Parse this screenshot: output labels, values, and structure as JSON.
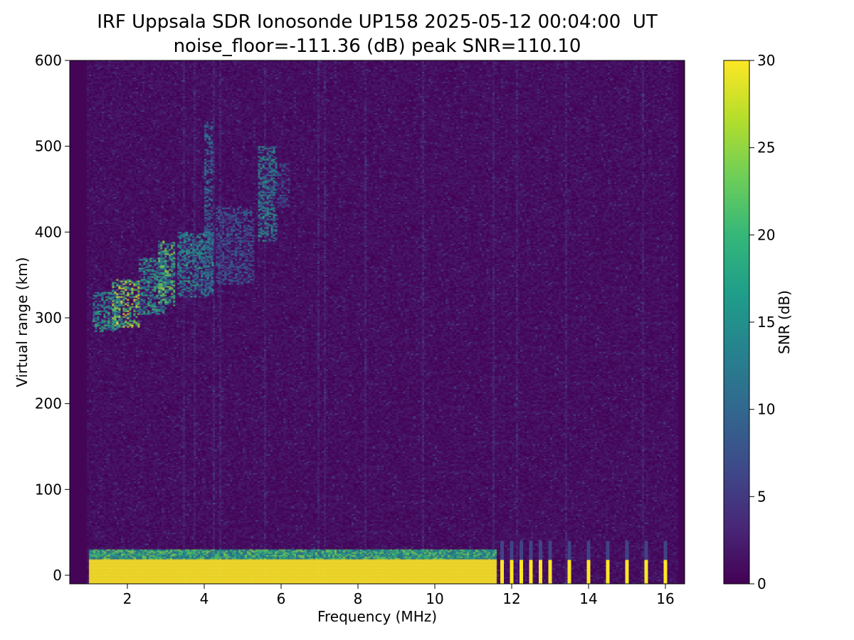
{
  "chart_data": {
    "type": "heatmap",
    "title": "IRF Uppsala SDR Ionosonde UP158 2025-05-12 00:04:00  UT",
    "subtitle": "noise_floor=-111.36 (dB) peak SNR=110.10",
    "xlabel": "Frequency (MHz)",
    "ylabel": "Virtual range (km)",
    "xlim": [
      0.5,
      16.5
    ],
    "ylim": [
      -10,
      600
    ],
    "x_ticks": [
      2,
      4,
      6,
      8,
      10,
      12,
      14,
      16
    ],
    "y_ticks": [
      0,
      100,
      200,
      300,
      400,
      500,
      600
    ],
    "colorbar": {
      "label": "SNR (dB)",
      "range": [
        0,
        30
      ],
      "ticks": [
        0,
        5,
        10,
        15,
        20,
        25,
        30
      ],
      "colormap": "viridis",
      "colors": [
        "#440154",
        "#482878",
        "#3e4a89",
        "#31688e",
        "#26828e",
        "#1f9e89",
        "#35b779",
        "#6ece58",
        "#b5de2b",
        "#fde725"
      ]
    },
    "data_frequency_range_mhz": [
      0.95,
      16.3
    ],
    "features": [
      {
        "freq_mhz": [
          1.0,
          11.6
        ],
        "range_km": [
          -10,
          30
        ],
        "snr_db": 30
      },
      {
        "freq_mhz": [
          1.1,
          1.8
        ],
        "range_km": [
          285,
          330
        ],
        "snr_db": 18
      },
      {
        "freq_mhz": [
          1.6,
          2.3
        ],
        "range_km": [
          290,
          345
        ],
        "snr_db": 26
      },
      {
        "freq_mhz": [
          2.3,
          3.0
        ],
        "range_km": [
          305,
          370
        ],
        "snr_db": 18
      },
      {
        "freq_mhz": [
          2.8,
          3.2
        ],
        "range_km": [
          315,
          390
        ],
        "snr_db": 22
      },
      {
        "freq_mhz": [
          3.3,
          4.2
        ],
        "range_km": [
          325,
          400
        ],
        "snr_db": 16
      },
      {
        "freq_mhz": [
          4.0,
          4.2
        ],
        "range_km": [
          330,
          530
        ],
        "snr_db": 12
      },
      {
        "freq_mhz": [
          4.3,
          5.3
        ],
        "range_km": [
          340,
          430
        ],
        "snr_db": 9
      },
      {
        "freq_mhz": [
          5.4,
          5.9
        ],
        "range_km": [
          390,
          500
        ],
        "snr_db": 16
      },
      {
        "freq_mhz": [
          5.9,
          6.2
        ],
        "range_km": [
          430,
          480
        ],
        "snr_db": 8
      }
    ],
    "pulse_columns_mhz": [
      11.75,
      12.0,
      12.25,
      12.5,
      12.75,
      13.0,
      13.5,
      14.0,
      14.5,
      15.0,
      15.5,
      16.0
    ]
  }
}
